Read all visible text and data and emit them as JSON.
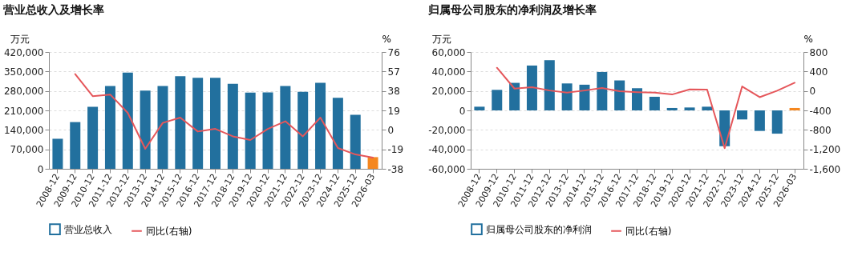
{
  "chart_data": [
    {
      "type": "bar",
      "title": "营业总收入及增长率",
      "ylabel": "万元",
      "y2label": "%",
      "grid": "y",
      "legend": "bottom",
      "categories": [
        "2008-12",
        "2009-12",
        "2010-12",
        "2011-12",
        "2012-12",
        "2013-12",
        "2014-12",
        "2015-12",
        "2016-12",
        "2017-12",
        "2018-12",
        "2019-12",
        "2020-12",
        "2021-12",
        "2022-12",
        "2023-12",
        "2024-12",
        "2025-12",
        "2026-03"
      ],
      "series": [
        {
          "name": "营业总收入",
          "colors": [
            "#22709e",
            "#22709e",
            "#22709e",
            "#22709e",
            "#22709e",
            "#22709e",
            "#22709e",
            "#22709e",
            "#22709e",
            "#22709e",
            "#22709e",
            "#22709e",
            "#22709e",
            "#22709e",
            "#22709e",
            "#22709e",
            "#22709e",
            "#22709e",
            "#f5871f"
          ],
          "values": [
            108000,
            168000,
            223000,
            298000,
            346000,
            281000,
            298000,
            333000,
            327000,
            327000,
            306000,
            274000,
            275000,
            298000,
            277000,
            309000,
            255000,
            194000,
            42000
          ]
        },
        {
          "name": "同比(右轴)",
          "type": "line",
          "axis": "y2",
          "color": "#e5575b",
          "values": [
            null,
            54.5,
            32.9,
            34.5,
            16.7,
            -18.5,
            6.8,
            12,
            -1.6,
            1.0,
            -6.3,
            -9.9,
            1.0,
            8.4,
            -6.3,
            12,
            -17.7,
            -24,
            -27.1
          ]
        }
      ],
      "ylim": [
        0,
        420000
      ],
      "yticks": [
        0,
        {
          "value": 70000,
          "label": "70,000"
        },
        {
          "value": 140000,
          "label": "140,000"
        },
        {
          "value": 210000,
          "label": "210,000"
        },
        {
          "value": 280000,
          "label": "280,000"
        },
        {
          "value": 350000,
          "label": "350,000"
        },
        {
          "value": 420000,
          "label": "420,000"
        }
      ],
      "y2lim": [
        -38,
        76
      ],
      "y2ticks": [
        -38,
        -19,
        0,
        19,
        38,
        57,
        76
      ]
    },
    {
      "type": "bar",
      "title": "归属母公司股东的净利润及增长率",
      "ylabel": "万元",
      "y2label": "%",
      "grid": "y",
      "legend": "bottom",
      "categories": [
        "2008-12",
        "2009-12",
        "2010-12",
        "2011-12",
        "2012-12",
        "2013-12",
        "2014-12",
        "2015-12",
        "2016-12",
        "2017-12",
        "2018-12",
        "2019-12",
        "2020-12",
        "2021-12",
        "2022-12",
        "2023-12",
        "2024-12",
        "2025-12",
        "2026-03"
      ],
      "series": [
        {
          "name": "归属母公司股东的净利润",
          "colors": [
            "#22709e",
            "#22709e",
            "#22709e",
            "#22709e",
            "#22709e",
            "#22709e",
            "#22709e",
            "#22709e",
            "#22709e",
            "#22709e",
            "#22709e",
            "#22709e",
            "#22709e",
            "#22709e",
            "#22709e",
            "#22709e",
            "#22709e",
            "#22709e",
            "#f5871f"
          ],
          "values": [
            3800,
            21100,
            28300,
            46100,
            51600,
            27700,
            26400,
            39500,
            30800,
            22800,
            14000,
            2500,
            3000,
            3800,
            -36800,
            -9300,
            -21100,
            -23900,
            2500
          ]
        },
        {
          "name": "同比(右轴)",
          "type": "line",
          "axis": "y2",
          "color": "#e5575b",
          "values": [
            null,
            476,
            48,
            75,
            9,
            -35,
            9,
            59,
            -7,
            -24,
            -35,
            -73,
            31,
            26,
            -1177,
            92,
            -128,
            4,
            168
          ]
        }
      ],
      "ylim": [
        -60000,
        60000
      ],
      "yticks": [
        {
          "value": -60000,
          "label": "-60,000"
        },
        {
          "value": -40000,
          "label": "-40,000"
        },
        {
          "value": -20000,
          "label": "-20,000"
        },
        0,
        {
          "value": 20000,
          "label": "20,000"
        },
        {
          "value": 40000,
          "label": "40,000"
        },
        {
          "value": 60000,
          "label": "60,000"
        }
      ],
      "y2lim": [
        -1600,
        800
      ],
      "y2ticks": [
        {
          "value": -1600,
          "label": "-1,600"
        },
        {
          "value": -1200,
          "label": "-1,200"
        },
        -800,
        -400,
        0,
        400,
        800
      ]
    }
  ]
}
